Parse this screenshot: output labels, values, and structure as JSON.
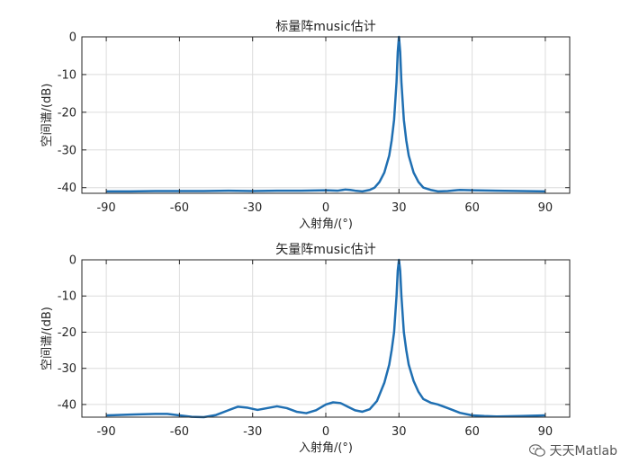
{
  "chart_data": [
    {
      "type": "line",
      "title": "标量阵music估计",
      "xlabel": "入射角/(°)",
      "ylabel": "空间谱/(dB)",
      "xlim": [
        -100,
        100
      ],
      "ylim": [
        -41.5,
        0
      ],
      "xticks": [
        -90,
        -60,
        -30,
        0,
        30,
        60,
        90
      ],
      "yticks": [
        0,
        -10,
        -20,
        -30,
        -40
      ],
      "grid": true,
      "series": [
        {
          "x": [
            -90,
            -80,
            -70,
            -60,
            -50,
            -40,
            -30,
            -20,
            -10,
            0,
            5,
            8,
            10,
            12,
            15,
            18,
            20,
            22,
            24,
            26,
            27,
            28,
            29,
            29.5,
            30,
            30.5,
            31,
            32,
            33,
            34,
            36,
            38,
            40,
            43,
            46,
            50,
            55,
            60,
            70,
            80,
            90
          ],
          "y": [
            -41.0,
            -41.0,
            -40.9,
            -40.9,
            -40.9,
            -40.8,
            -40.9,
            -40.8,
            -40.8,
            -40.7,
            -40.8,
            -40.5,
            -40.6,
            -40.8,
            -41.0,
            -40.6,
            -40.0,
            -38.5,
            -36.0,
            -31.5,
            -27.5,
            -22.0,
            -12.0,
            -4.0,
            0,
            -4.0,
            -12.0,
            -22.0,
            -27.5,
            -31.5,
            -36.0,
            -38.5,
            -40.0,
            -40.6,
            -41.0,
            -40.9,
            -40.6,
            -40.7,
            -40.8,
            -40.9,
            -41.0
          ]
        }
      ]
    },
    {
      "type": "line",
      "title": "矢量阵music估计",
      "xlabel": "入射角/(°)",
      "ylabel": "空间谱/(dB)",
      "xlim": [
        -100,
        100
      ],
      "ylim": [
        -43.5,
        0
      ],
      "xticks": [
        -90,
        -60,
        -30,
        0,
        30,
        60,
        90
      ],
      "yticks": [
        0,
        -10,
        -20,
        -30,
        -40
      ],
      "grid": true,
      "series": [
        {
          "x": [
            -90,
            -80,
            -70,
            -65,
            -60,
            -55,
            -50,
            -45,
            -40,
            -36,
            -32,
            -28,
            -24,
            -20,
            -16,
            -12,
            -8,
            -4,
            0,
            3,
            6,
            9,
            12,
            15,
            18,
            21,
            24,
            26,
            27,
            28,
            29,
            29.5,
            30,
            30.5,
            31,
            32,
            33,
            34,
            36,
            38,
            40,
            43,
            46,
            50,
            55,
            60,
            65,
            70,
            80,
            90
          ],
          "y": [
            -43.0,
            -42.8,
            -42.6,
            -42.6,
            -43.0,
            -43.4,
            -43.5,
            -42.9,
            -41.6,
            -40.6,
            -40.9,
            -41.5,
            -41.0,
            -40.5,
            -41.0,
            -42.0,
            -42.4,
            -41.6,
            -40.0,
            -39.4,
            -39.6,
            -40.6,
            -41.6,
            -42.0,
            -41.3,
            -39.0,
            -34.0,
            -29.0,
            -25.0,
            -20.0,
            -10.0,
            -3.0,
            0,
            -3.0,
            -10.0,
            -20.0,
            -25.0,
            -29.0,
            -33.5,
            -36.5,
            -38.5,
            -39.5,
            -40.0,
            -41.0,
            -42.3,
            -43.0,
            -43.2,
            -43.3,
            -43.2,
            -43.0
          ]
        }
      ]
    }
  ],
  "watermark": {
    "text": "天天Matlab",
    "icon": "wechat-icon"
  },
  "colors": {
    "line": "#1f6fb2",
    "grid": "#dcdcdc",
    "axis": "#262626"
  }
}
